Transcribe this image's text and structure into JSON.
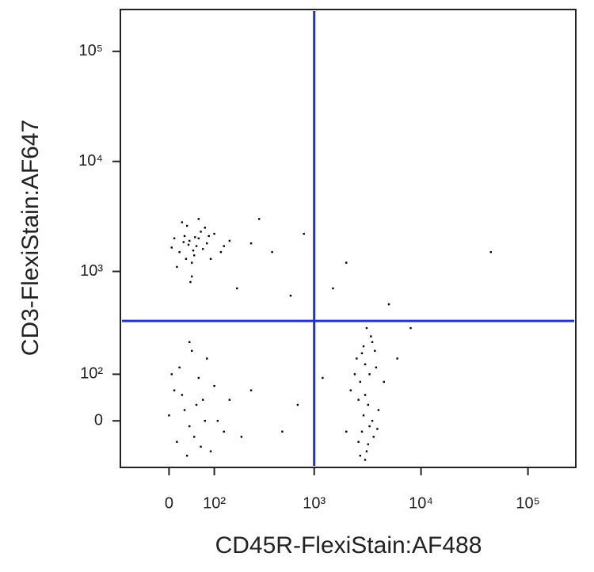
{
  "chart_data": {
    "type": "scatter",
    "x_label": "CD45R-FlexiStain:AF488",
    "y_label": "CD3-FlexiStain:AF647",
    "scale": "biexponential",
    "color": "#000000",
    "gate_color": "#2233cc",
    "gates": {
      "x": 1000,
      "y": 350
    },
    "xlim": [
      -110,
      280000
    ],
    "ylim": [
      -100,
      240000
    ],
    "xticks": [
      0,
      {
        "value": 100,
        "label": "10²"
      },
      {
        "value": 1000,
        "label": "10³"
      },
      {
        "value": 10000,
        "label": "10⁴"
      },
      {
        "value": 100000,
        "label": "10⁵"
      }
    ],
    "yticks": [
      0,
      {
        "value": 100,
        "label": "10²"
      },
      {
        "value": 1000,
        "label": "10³"
      },
      {
        "value": 10000,
        "label": "10⁴"
      },
      {
        "value": 100000,
        "label": "10⁵"
      }
    ],
    "x": [
      40,
      30,
      55,
      20,
      65,
      45,
      35,
      80,
      10,
      50,
      70,
      25,
      60,
      90,
      15,
      45,
      100,
      130,
      38,
      52,
      28,
      75,
      5,
      120,
      42,
      60,
      33,
      85,
      150,
      48,
      30,
      50,
      10,
      70,
      90,
      20,
      40,
      60,
      0,
      80,
      110,
      35,
      55,
      15,
      100,
      130,
      45,
      25,
      65,
      5,
      150,
      75,
      200,
      250,
      40,
      3000,
      2800,
      3300,
      2500,
      3500,
      3100,
      2700,
      3800,
      2900,
      3200,
      2600,
      3400,
      3000,
      2200,
      4000,
      3600,
      2800,
      3300,
      2400,
      3700,
      2900,
      3100,
      2000,
      4500,
      3000,
      2700,
      3500,
      3200,
      2600,
      3900,
      400,
      800,
      300,
      600,
      1500,
      2000,
      5000,
      45000,
      700,
      500,
      1200,
      8000,
      250,
      6000,
      180
    ],
    "values": [
      1900,
      2100,
      1700,
      1500,
      2300,
      1200,
      2600,
      1800,
      2000,
      1400,
      1600,
      2800,
      2000,
      1300,
      1100,
      900,
      2200,
      1700,
      1750,
      2050,
      1850,
      2500,
      1650,
      1500,
      800,
      3000,
      1300,
      2100,
      1900,
      1550,
      20,
      -30,
      60,
      40,
      -60,
      120,
      -10,
      90,
      10,
      150,
      0,
      -70,
      30,
      -40,
      70,
      -20,
      180,
      50,
      -50,
      100,
      40,
      0,
      -30,
      60,
      220,
      50,
      -20,
      100,
      150,
      0,
      -60,
      80,
      120,
      200,
      30,
      -40,
      250,
      -80,
      60,
      20,
      -30,
      170,
      -10,
      100,
      180,
      10,
      300,
      -20,
      80,
      130,
      -70,
      220,
      -45,
      40,
      -15,
      1500,
      2200,
      3000,
      600,
      700,
      1200,
      500,
      1500,
      30,
      -20,
      90,
      300,
      1800,
      150,
      700
    ]
  }
}
